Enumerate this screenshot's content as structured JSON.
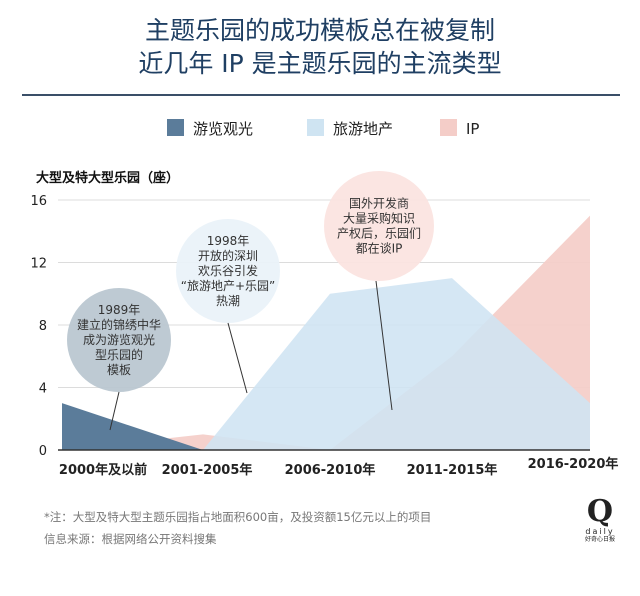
{
  "title": {
    "line1": "主题乐园的成功模板总在被复制",
    "line2": "近几年 IP 是主题乐园的主流类型"
  },
  "chart_data": {
    "type": "area",
    "ylabel": "大型及特大型乐园（座）",
    "ylim": [
      0,
      16
    ],
    "yticks": [
      "0",
      "4",
      "8",
      "12",
      "16"
    ],
    "x_labels": [
      "2000年及以前",
      "2001-2005年",
      "2006-2010年",
      "2011-2015年",
      "2016-2020年"
    ],
    "legend_position": "top",
    "series": [
      {
        "name": "游览观光",
        "color": "#5b7c9a",
        "points": [
          [
            0,
            3
          ],
          [
            1,
            0
          ]
        ]
      },
      {
        "name": "旅游地产",
        "color": "#cfe4f2",
        "points": [
          [
            1,
            0
          ],
          [
            2,
            10
          ],
          [
            3,
            11
          ],
          [
            4,
            3
          ]
        ]
      },
      {
        "name": "IP",
        "color": "#f4cdc8",
        "points": [
          [
            0,
            0
          ],
          [
            1,
            1
          ],
          [
            2,
            0
          ],
          [
            3,
            6
          ],
          [
            4,
            15
          ]
        ]
      }
    ],
    "annotations": [
      {
        "text": [
          "1989年",
          "建立的锦绣中华",
          "成为游览观光",
          "型乐园的",
          "模板"
        ],
        "color": "#b9c5cf"
      },
      {
        "text": [
          "1998年",
          "开放的深圳",
          "欢乐谷引发",
          "“旅游地产+乐园”",
          "热潮"
        ],
        "color": "#e9f2f8"
      },
      {
        "text": [
          "国外开发商",
          "大量采购知识",
          "产权后，乐园们",
          "都在谈IP"
        ],
        "color": "#fbe3df"
      }
    ]
  },
  "footer": {
    "note": "*注：大型及特大型主题乐园指占地面积600亩，及投资额15亿元以上的项目",
    "source": "信息来源：根据网络公开资料搜集"
  },
  "logo": {
    "letter": "Q",
    "word": "daily",
    "sub": "好奇心日报"
  }
}
